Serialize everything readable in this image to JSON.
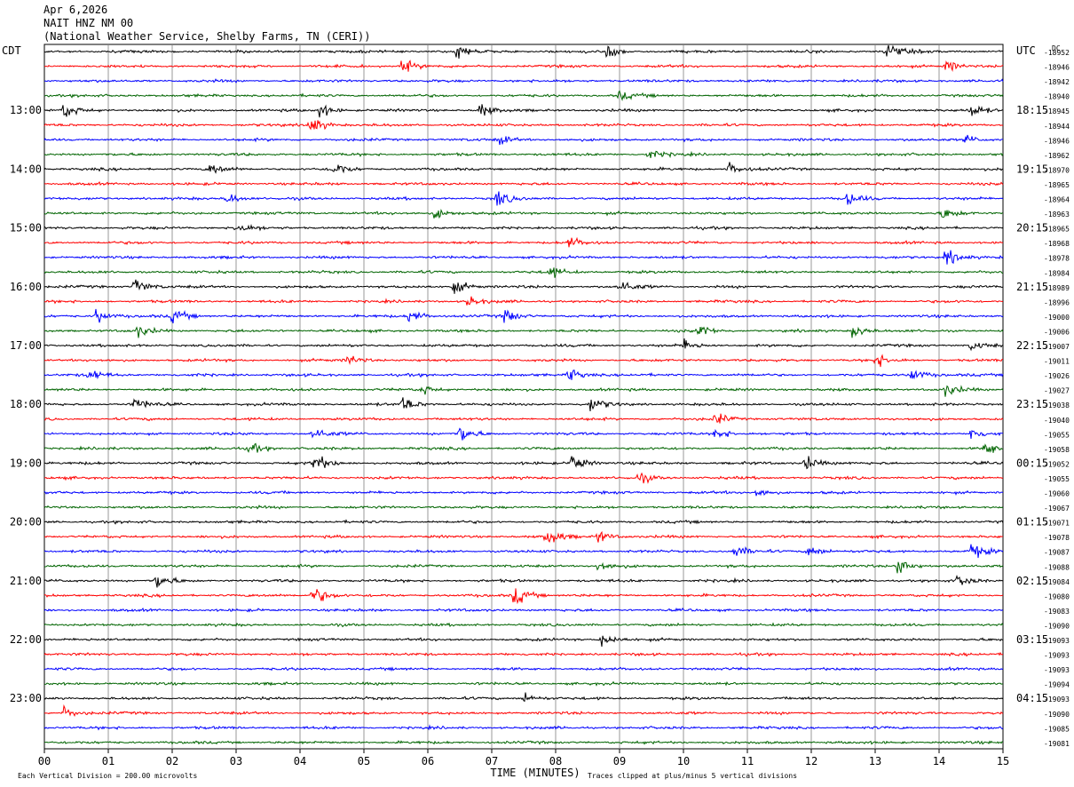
{
  "header": {
    "date": "Apr 6,2026",
    "station": "NAIT HNZ NM 00",
    "location": "(National Weather Service, Shelby Farms, TN (CERI))"
  },
  "labels": {
    "left_tz": "CDT",
    "right_tz": "UTC",
    "dc": "DC"
  },
  "footer": {
    "scale_note": "Each Vertical Division =  200.00 microvolts",
    "xlabel": "TIME (MINUTES)",
    "clip_note": "Traces clipped at plus/minus 5 vertical divisions"
  },
  "colors": {
    "trace_cycle": [
      "#000000",
      "#ff0000",
      "#0000ff",
      "#006400"
    ],
    "grid": "#808080"
  },
  "chart_data": {
    "type": "line",
    "title": "NAIT HNZ NM 00",
    "xlabel": "TIME (MINUTES)",
    "xlim": [
      0,
      15
    ],
    "x_ticks": [
      "00",
      "01",
      "02",
      "03",
      "04",
      "05",
      "06",
      "07",
      "08",
      "09",
      "10",
      "11",
      "12",
      "13",
      "14",
      "15"
    ],
    "grid": "vertical-only",
    "trace_count": 48,
    "trace_interval_minutes": 15,
    "left_hour_labels": [
      "13:00",
      "14:00",
      "15:00",
      "16:00",
      "17:00",
      "18:00",
      "19:00",
      "20:00",
      "21:00",
      "22:00",
      "23:00"
    ],
    "right_hour_labels": [
      "18:15",
      "19:15",
      "20:15",
      "21:15",
      "22:15",
      "23:15",
      "00:15",
      "01:15",
      "02:15",
      "03:15",
      "04:15"
    ],
    "dc_offsets": [
      -18952,
      -18946,
      -18942,
      -18940,
      -18945,
      -18944,
      -18946,
      -18962,
      -18970,
      -18965,
      -18964,
      -18963,
      -18965,
      -18968,
      -18978,
      -18984,
      -18989,
      -18996,
      -19000,
      -19006,
      -19007,
      -19011,
      -19026,
      -19027,
      -19038,
      -19040,
      -19055,
      -19058,
      -19052,
      -19055,
      -19060,
      -19067,
      -19071,
      -19078,
      -19087,
      -19088,
      -19084,
      -19080,
      -19083,
      -19090,
      -19093,
      -19093,
      -19093,
      -19094,
      -19093,
      -19090,
      -19085,
      -19081
    ],
    "events": [
      {
        "trace": 0,
        "minute": 6.45,
        "amplitude": 8
      },
      {
        "trace": 0,
        "minute": 8.8,
        "amplitude": 7
      },
      {
        "trace": 0,
        "minute": 13.15,
        "amplitude": 10
      },
      {
        "trace": 1,
        "minute": 5.6,
        "amplitude": 8
      },
      {
        "trace": 1,
        "minute": 14.1,
        "amplitude": 7
      },
      {
        "trace": 3,
        "minute": 9.0,
        "amplitude": 5
      },
      {
        "trace": 4,
        "minute": 0.3,
        "amplitude": 9
      },
      {
        "trace": 4,
        "minute": 4.3,
        "amplitude": 8
      },
      {
        "trace": 4,
        "minute": 6.8,
        "amplitude": 8
      },
      {
        "trace": 4,
        "minute": 14.5,
        "amplitude": 8
      },
      {
        "trace": 5,
        "minute": 4.15,
        "amplitude": 11
      },
      {
        "trace": 6,
        "minute": 7.1,
        "amplitude": 6
      },
      {
        "trace": 6,
        "minute": 14.4,
        "amplitude": 6
      },
      {
        "trace": 7,
        "minute": 9.45,
        "amplitude": 5
      },
      {
        "trace": 8,
        "minute": 2.6,
        "amplitude": 7
      },
      {
        "trace": 8,
        "minute": 4.5,
        "amplitude": 10
      },
      {
        "trace": 8,
        "minute": 10.7,
        "amplitude": 7
      },
      {
        "trace": 10,
        "minute": 2.85,
        "amplitude": 7
      },
      {
        "trace": 10,
        "minute": 7.05,
        "amplitude": 10
      },
      {
        "trace": 10,
        "minute": 12.55,
        "amplitude": 8
      },
      {
        "trace": 11,
        "minute": 6.1,
        "amplitude": 7
      },
      {
        "trace": 11,
        "minute": 14.05,
        "amplitude": 7
      },
      {
        "trace": 12,
        "minute": 3.0,
        "amplitude": 7
      },
      {
        "trace": 13,
        "minute": 8.2,
        "amplitude": 6
      },
      {
        "trace": 14,
        "minute": 14.1,
        "amplitude": 11
      },
      {
        "trace": 15,
        "minute": 7.9,
        "amplitude": 7
      },
      {
        "trace": 16,
        "minute": 1.4,
        "amplitude": 10
      },
      {
        "trace": 16,
        "minute": 6.4,
        "amplitude": 9
      },
      {
        "trace": 16,
        "minute": 9.0,
        "amplitude": 8
      },
      {
        "trace": 17,
        "minute": 6.6,
        "amplitude": 7
      },
      {
        "trace": 18,
        "minute": 0.8,
        "amplitude": 8
      },
      {
        "trace": 18,
        "minute": 2.0,
        "amplitude": 9
      },
      {
        "trace": 18,
        "minute": 5.7,
        "amplitude": 8
      },
      {
        "trace": 18,
        "minute": 7.2,
        "amplitude": 9
      },
      {
        "trace": 19,
        "minute": 1.45,
        "amplitude": 7
      },
      {
        "trace": 19,
        "minute": 10.25,
        "amplitude": 7
      },
      {
        "trace": 19,
        "minute": 12.65,
        "amplitude": 8
      },
      {
        "trace": 20,
        "minute": 10.0,
        "amplitude": 7
      },
      {
        "trace": 20,
        "minute": 14.5,
        "amplitude": 6
      },
      {
        "trace": 21,
        "minute": 4.75,
        "amplitude": 6
      },
      {
        "trace": 21,
        "minute": 13.0,
        "amplitude": 8
      },
      {
        "trace": 22,
        "minute": 0.7,
        "amplitude": 7
      },
      {
        "trace": 22,
        "minute": 8.2,
        "amplitude": 8
      },
      {
        "trace": 22,
        "minute": 13.55,
        "amplitude": 9
      },
      {
        "trace": 23,
        "minute": 5.9,
        "amplitude": 6
      },
      {
        "trace": 23,
        "minute": 14.1,
        "amplitude": 7
      },
      {
        "trace": 24,
        "minute": 1.4,
        "amplitude": 8
      },
      {
        "trace": 24,
        "minute": 5.6,
        "amplitude": 9
      },
      {
        "trace": 24,
        "minute": 8.55,
        "amplitude": 9
      },
      {
        "trace": 25,
        "minute": 10.5,
        "amplitude": 7
      },
      {
        "trace": 26,
        "minute": 4.2,
        "amplitude": 8
      },
      {
        "trace": 26,
        "minute": 6.5,
        "amplitude": 10
      },
      {
        "trace": 26,
        "minute": 10.5,
        "amplitude": 7
      },
      {
        "trace": 26,
        "minute": 14.5,
        "amplitude": 8
      },
      {
        "trace": 27,
        "minute": 3.2,
        "amplitude": 7
      },
      {
        "trace": 27,
        "minute": 14.7,
        "amplitude": 9
      },
      {
        "trace": 28,
        "minute": 4.2,
        "amplitude": 12
      },
      {
        "trace": 28,
        "minute": 8.25,
        "amplitude": 11
      },
      {
        "trace": 28,
        "minute": 11.9,
        "amplitude": 9
      },
      {
        "trace": 29,
        "minute": 9.3,
        "amplitude": 6
      },
      {
        "trace": 30,
        "minute": 11.15,
        "amplitude": 6
      },
      {
        "trace": 33,
        "minute": 7.85,
        "amplitude": 11
      },
      {
        "trace": 33,
        "minute": 8.65,
        "amplitude": 7
      },
      {
        "trace": 34,
        "minute": 10.8,
        "amplitude": 7
      },
      {
        "trace": 34,
        "minute": 11.95,
        "amplitude": 8
      },
      {
        "trace": 34,
        "minute": 14.5,
        "amplitude": 9
      },
      {
        "trace": 35,
        "minute": 8.65,
        "amplitude": 7
      },
      {
        "trace": 35,
        "minute": 13.35,
        "amplitude": 11
      },
      {
        "trace": 36,
        "minute": 1.75,
        "amplitude": 9
      },
      {
        "trace": 36,
        "minute": 14.3,
        "amplitude": 7
      },
      {
        "trace": 37,
        "minute": 4.2,
        "amplitude": 12
      },
      {
        "trace": 37,
        "minute": 7.35,
        "amplitude": 13
      },
      {
        "trace": 40,
        "minute": 8.7,
        "amplitude": 10
      },
      {
        "trace": 44,
        "minute": 7.5,
        "amplitude": 6
      },
      {
        "trace": 45,
        "minute": 0.3,
        "amplitude": 7
      }
    ]
  }
}
